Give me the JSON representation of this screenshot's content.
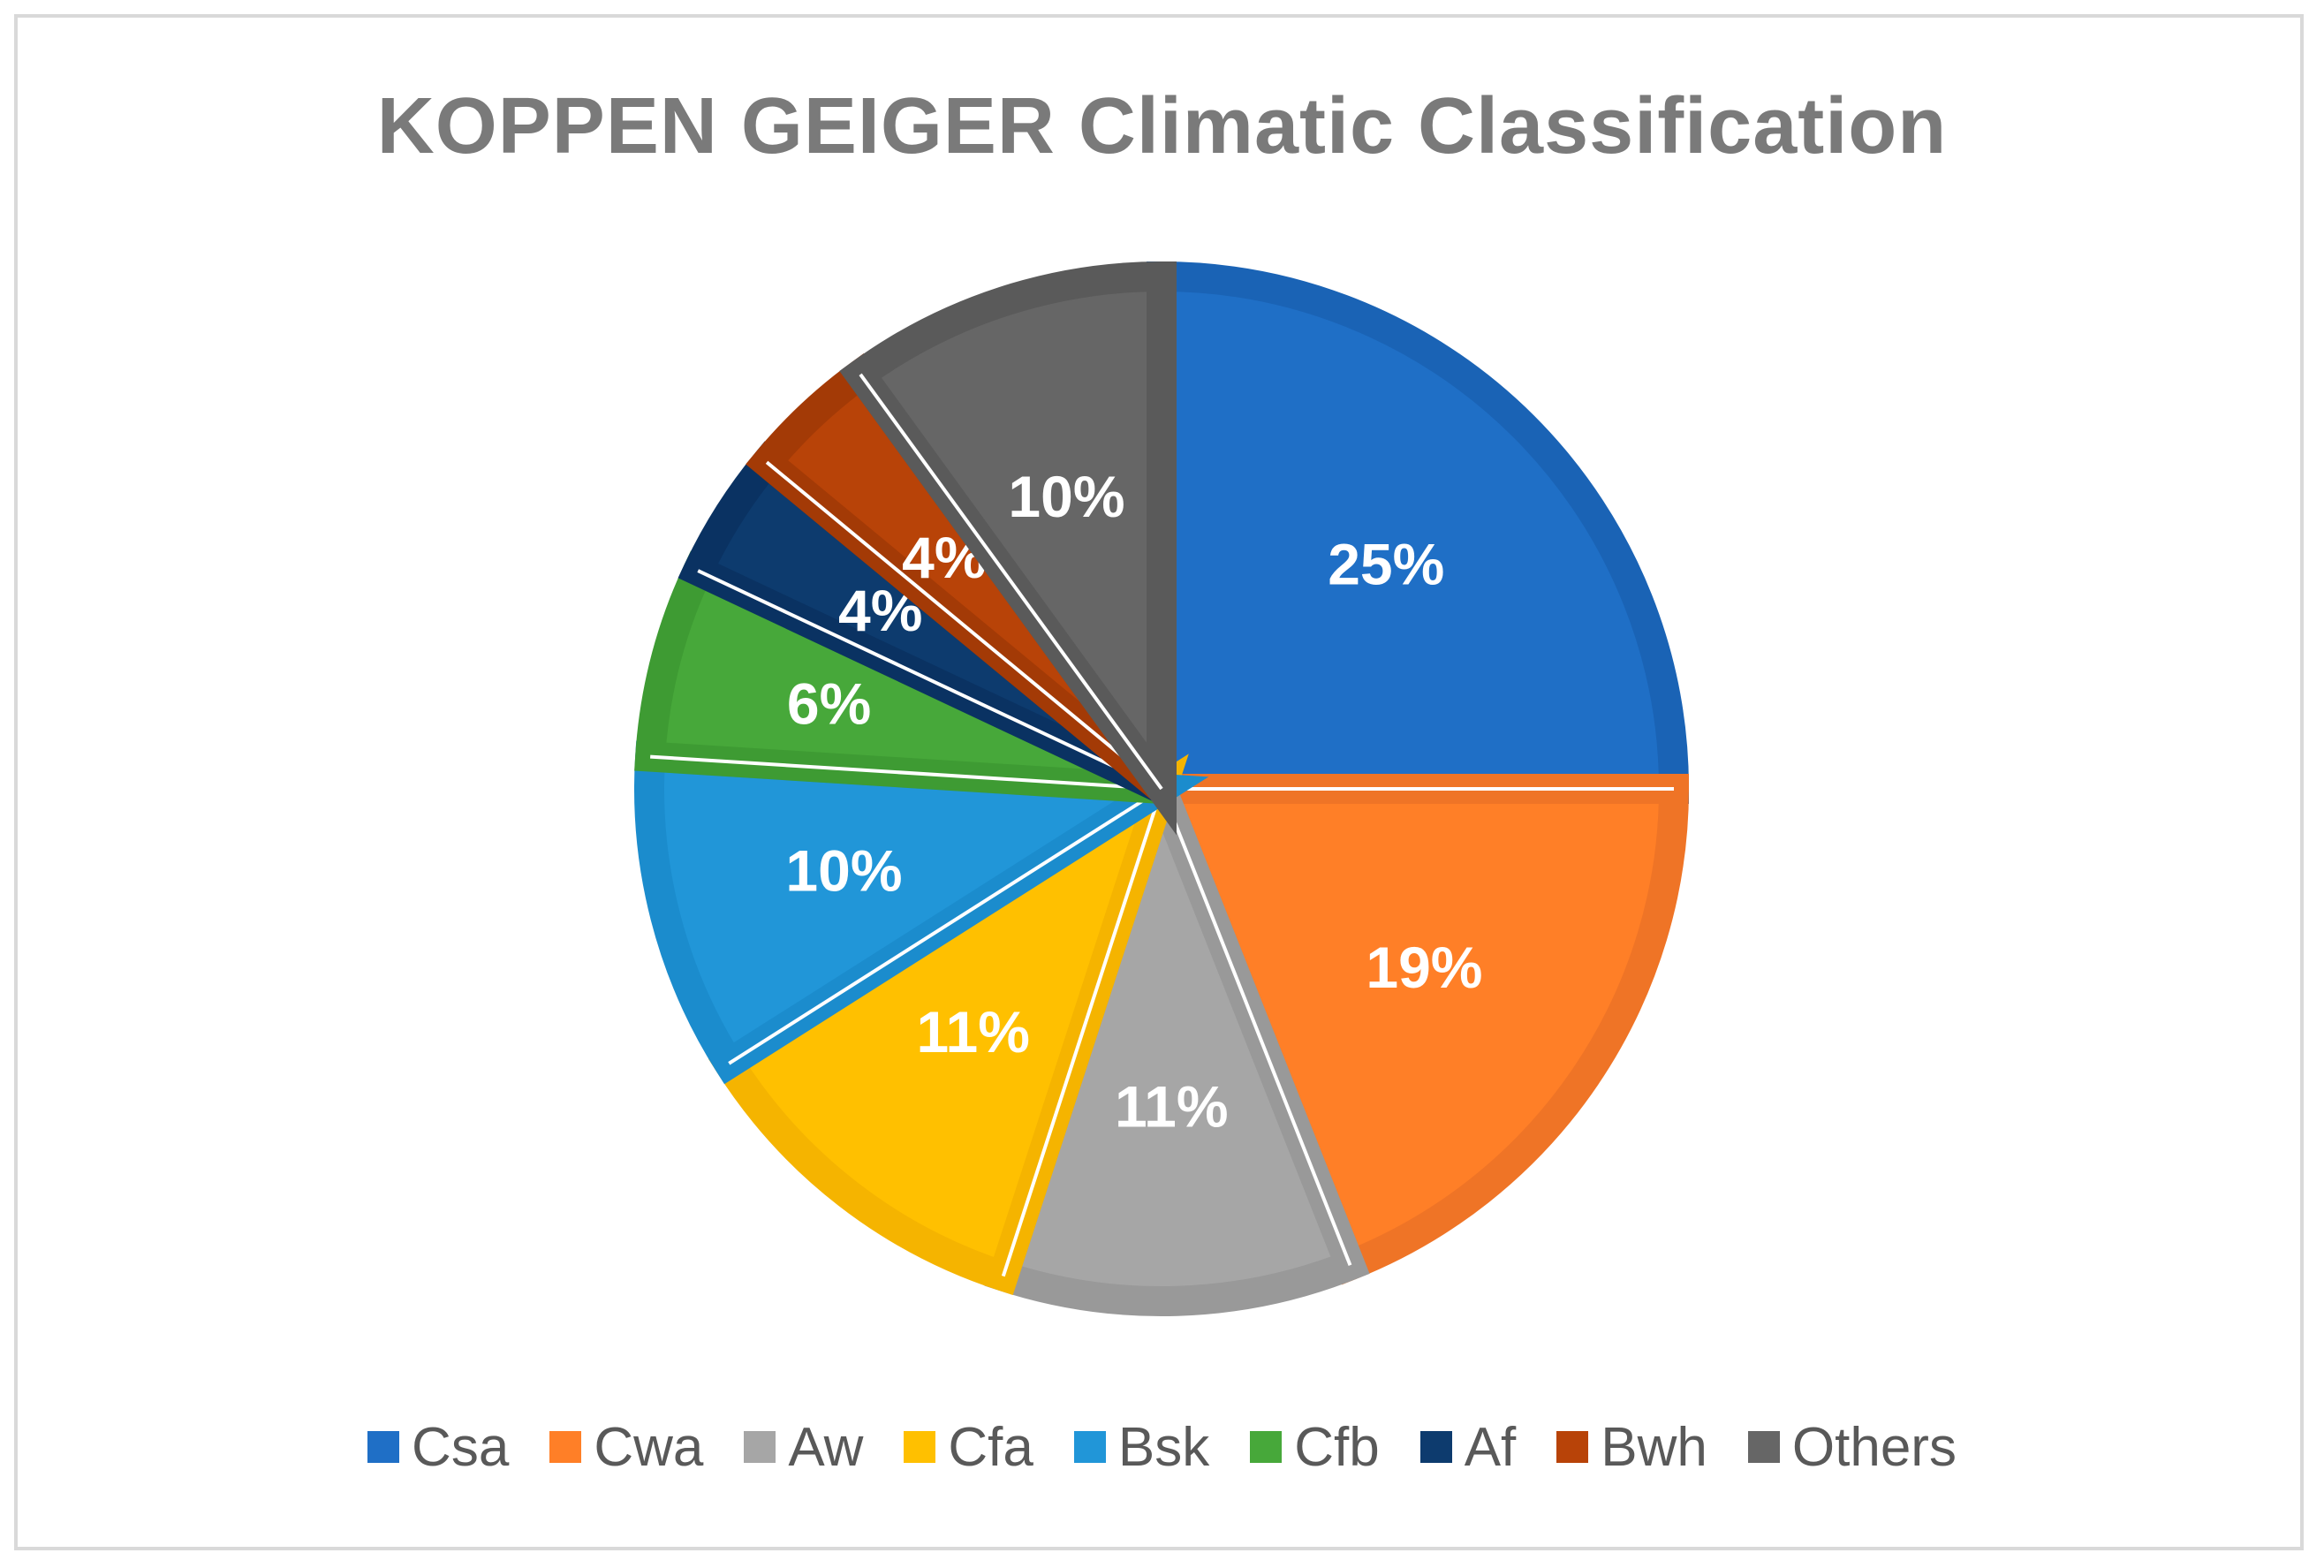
{
  "chart_data": {
    "type": "pie",
    "title": "KOPPEN GEIGER Climatic Classification",
    "legend_position": "bottom",
    "slices": [
      {
        "name": "Csa",
        "value": 25,
        "label": "25%",
        "color": "#1f6fc6",
        "edge": "#1a63b5"
      },
      {
        "name": "Cwa",
        "value": 19,
        "label": "19%",
        "color": "#ff7f27",
        "edge": "#ef7426"
      },
      {
        "name": "Aw",
        "value": 11,
        "label": "11%",
        "color": "#a6a6a6",
        "edge": "#999999"
      },
      {
        "name": "Cfa",
        "value": 11,
        "label": "11%",
        "color": "#ffc000",
        "edge": "#f5b400"
      },
      {
        "name": "Bsk",
        "value": 10,
        "label": "10%",
        "color": "#2196d8",
        "edge": "#1b8ccd"
      },
      {
        "name": "Cfb",
        "value": 6,
        "label": "6%",
        "color": "#47a83a",
        "edge": "#3e9b33"
      },
      {
        "name": "Af",
        "value": 4,
        "label": "4%",
        "color": "#0d3b6e",
        "edge": "#0a3262"
      },
      {
        "name": "Bwh",
        "value": 4,
        "label": "4%",
        "color": "#b84308",
        "edge": "#a33a06"
      },
      {
        "name": "Others",
        "value": 10,
        "label": "10%",
        "color": "#666666",
        "edge": "#5a5a5a"
      }
    ]
  }
}
